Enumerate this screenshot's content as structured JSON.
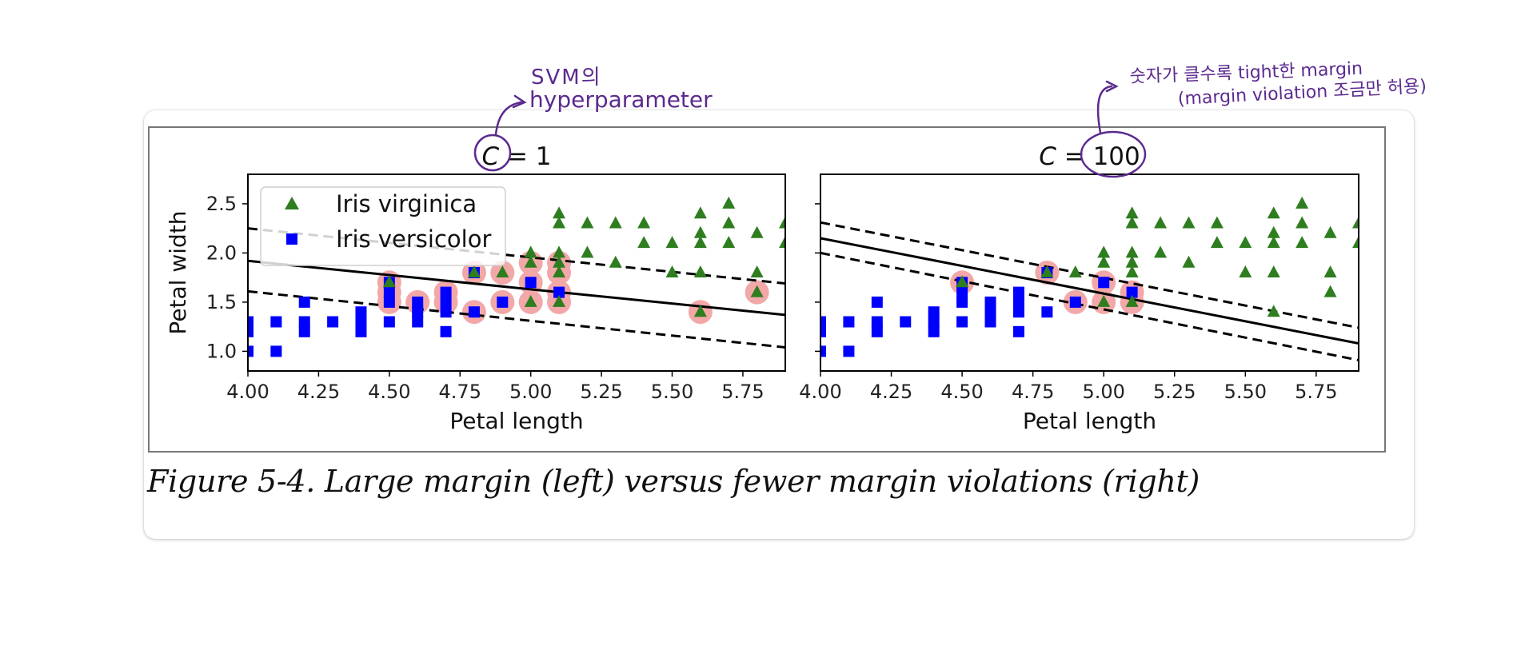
{
  "caption": "Figure 5-4. Large margin (left) versus fewer margin violations (right)",
  "annotations": {
    "svm_line1": "SVM의",
    "svm_line2": "hyperparameter",
    "c_line1": "숫자가 클수록 tight한 margin",
    "c_line2": "(margin violation 조금만 허용)"
  },
  "colors": {
    "virginica": "#2e7d1f",
    "versicolor": "#0000ff",
    "support": "#f2a8a8",
    "annotation": "#5b2a8e"
  },
  "chart_data": [
    {
      "type": "scatter",
      "title_var": "C",
      "title_value": "= 1",
      "xlabel": "Petal length",
      "ylabel": "Petal width",
      "xlim": [
        4.0,
        5.9
      ],
      "ylim": [
        0.8,
        2.8
      ],
      "xticks": [
        "4.00",
        "4.25",
        "4.50",
        "4.75",
        "5.00",
        "5.25",
        "5.50",
        "5.75"
      ],
      "yticks": [
        "1.0",
        "1.5",
        "2.0",
        "2.5"
      ],
      "legend": {
        "placement": "top-left",
        "entries": [
          "Iris virginica",
          "Iris versicolor"
        ]
      },
      "boundary": {
        "x": [
          4.0,
          5.9
        ],
        "y": [
          1.92,
          1.37
        ]
      },
      "margin_upper": {
        "x": [
          4.0,
          5.9
        ],
        "y": [
          2.25,
          1.69
        ]
      },
      "margin_lower": {
        "x": [
          4.0,
          5.9
        ],
        "y": [
          1.61,
          1.04
        ]
      },
      "support_vectors": [
        [
          4.5,
          1.7
        ],
        [
          4.5,
          1.5
        ],
        [
          4.5,
          1.6
        ],
        [
          4.6,
          1.5
        ],
        [
          4.7,
          1.6
        ],
        [
          4.7,
          1.5
        ],
        [
          4.8,
          1.8
        ],
        [
          4.8,
          1.4
        ],
        [
          4.9,
          1.8
        ],
        [
          4.9,
          1.5
        ],
        [
          5.0,
          1.9
        ],
        [
          5.0,
          1.7
        ],
        [
          5.0,
          1.5
        ],
        [
          5.1,
          1.8
        ],
        [
          5.1,
          1.9
        ],
        [
          5.1,
          1.6
        ],
        [
          5.1,
          1.5
        ],
        [
          5.6,
          1.4
        ],
        [
          5.8,
          1.6
        ]
      ]
    },
    {
      "type": "scatter",
      "title_var": "C",
      "title_value": "= 100",
      "xlabel": "Petal length",
      "ylabel": "",
      "xlim": [
        4.0,
        5.9
      ],
      "ylim": [
        0.8,
        2.8
      ],
      "xticks": [
        "4.00",
        "4.25",
        "4.50",
        "4.75",
        "5.00",
        "5.25",
        "5.50",
        "5.75"
      ],
      "yticks": [],
      "boundary": {
        "x": [
          4.0,
          5.9
        ],
        "y": [
          2.15,
          1.08
        ]
      },
      "margin_upper": {
        "x": [
          4.0,
          5.9
        ],
        "y": [
          2.31,
          1.24
        ]
      },
      "margin_lower": {
        "x": [
          4.0,
          5.9
        ],
        "y": [
          2.0,
          0.91
        ]
      },
      "support_vectors": [
        [
          4.5,
          1.7
        ],
        [
          4.8,
          1.8
        ],
        [
          4.9,
          1.5
        ],
        [
          5.0,
          1.7
        ],
        [
          5.0,
          1.5
        ],
        [
          5.1,
          1.6
        ],
        [
          5.1,
          1.5
        ]
      ]
    }
  ],
  "series": [
    {
      "name": "Iris virginica",
      "marker": "triangle",
      "points": [
        [
          4.5,
          1.7
        ],
        [
          4.8,
          1.8
        ],
        [
          4.9,
          1.8
        ],
        [
          5.0,
          2.0
        ],
        [
          5.0,
          1.9
        ],
        [
          5.0,
          1.5
        ],
        [
          5.1,
          2.4
        ],
        [
          5.1,
          2.3
        ],
        [
          5.1,
          2.0
        ],
        [
          5.1,
          1.9
        ],
        [
          5.1,
          1.8
        ],
        [
          5.1,
          1.5
        ],
        [
          5.2,
          2.3
        ],
        [
          5.2,
          2.0
        ],
        [
          5.3,
          2.3
        ],
        [
          5.3,
          1.9
        ],
        [
          5.4,
          2.3
        ],
        [
          5.4,
          2.1
        ],
        [
          5.5,
          2.1
        ],
        [
          5.5,
          1.8
        ],
        [
          5.6,
          2.4
        ],
        [
          5.6,
          2.2
        ],
        [
          5.6,
          2.1
        ],
        [
          5.6,
          1.8
        ],
        [
          5.6,
          1.4
        ],
        [
          5.7,
          2.5
        ],
        [
          5.7,
          2.3
        ],
        [
          5.7,
          2.1
        ],
        [
          5.8,
          2.2
        ],
        [
          5.8,
          1.8
        ],
        [
          5.8,
          1.6
        ],
        [
          5.9,
          2.3
        ],
        [
          5.9,
          2.1
        ]
      ]
    },
    {
      "name": "Iris versicolor",
      "marker": "square",
      "points": [
        [
          4.0,
          1.3
        ],
        [
          4.0,
          1.2
        ],
        [
          4.0,
          1.0
        ],
        [
          4.1,
          1.3
        ],
        [
          4.1,
          1.0
        ],
        [
          4.2,
          1.5
        ],
        [
          4.2,
          1.3
        ],
        [
          4.2,
          1.2
        ],
        [
          4.3,
          1.3
        ],
        [
          4.4,
          1.4
        ],
        [
          4.4,
          1.3
        ],
        [
          4.4,
          1.2
        ],
        [
          4.5,
          1.7
        ],
        [
          4.5,
          1.6
        ],
        [
          4.5,
          1.5
        ],
        [
          4.5,
          1.3
        ],
        [
          4.6,
          1.5
        ],
        [
          4.6,
          1.4
        ],
        [
          4.6,
          1.3
        ],
        [
          4.7,
          1.6
        ],
        [
          4.7,
          1.5
        ],
        [
          4.7,
          1.4
        ],
        [
          4.7,
          1.2
        ],
        [
          4.8,
          1.8
        ],
        [
          4.8,
          1.4
        ],
        [
          4.9,
          1.5
        ],
        [
          5.0,
          1.7
        ],
        [
          5.1,
          1.6
        ]
      ]
    }
  ]
}
